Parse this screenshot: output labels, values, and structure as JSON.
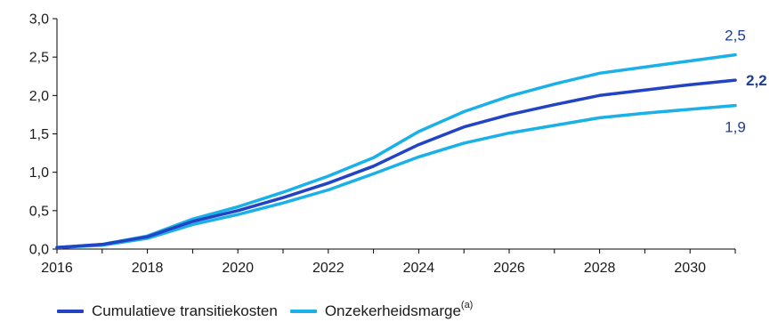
{
  "chart_data": {
    "type": "line",
    "x": [
      2016,
      2017,
      2018,
      2019,
      2020,
      2021,
      2022,
      2023,
      2024,
      2025,
      2026,
      2027,
      2028,
      2029,
      2030,
      2031
    ],
    "series": [
      {
        "name": "Cumulatieve transitiekosten",
        "color": "#2244c4",
        "width": 3.5,
        "values": [
          0.02,
          0.06,
          0.16,
          0.36,
          0.5,
          0.67,
          0.86,
          1.08,
          1.36,
          1.59,
          1.75,
          1.88,
          2.0,
          2.07,
          2.14,
          2.2
        ],
        "end_label": "2,2",
        "end_label_color": "#1f3c96",
        "end_label_bold": true
      },
      {
        "name": "Onzekerheidsmarge upper",
        "color": "#1ab0e8",
        "width": 3.5,
        "values": [
          0.02,
          0.06,
          0.17,
          0.39,
          0.55,
          0.74,
          0.95,
          1.19,
          1.53,
          1.79,
          1.99,
          2.15,
          2.29,
          2.37,
          2.45,
          2.53
        ],
        "end_label": "2,5",
        "end_label_color": "#1f3c96",
        "end_label_bold": false
      },
      {
        "name": "Onzekerheidsmarge lower",
        "color": "#1ab0e8",
        "width": 3.5,
        "values": [
          0.02,
          0.05,
          0.14,
          0.32,
          0.45,
          0.6,
          0.77,
          0.98,
          1.2,
          1.38,
          1.51,
          1.61,
          1.71,
          1.77,
          1.82,
          1.87
        ],
        "end_label": "1,9",
        "end_label_color": "#1f3c96",
        "end_label_bold": false
      }
    ],
    "xlim": [
      2016,
      2031
    ],
    "ylim": [
      0,
      3
    ],
    "x_ticks": [
      2016,
      2018,
      2020,
      2022,
      2024,
      2026,
      2028,
      2030
    ],
    "x_tick_labels": [
      "2016",
      "2018",
      "2020",
      "2022",
      "2024",
      "2026",
      "2028",
      "2030"
    ],
    "y_ticks": [
      0,
      0.5,
      1,
      1.5,
      2,
      2.5,
      3
    ],
    "y_tick_labels": [
      "0,0",
      "0,5",
      "1,0",
      "1,5",
      "2,0",
      "2,5",
      "3,0"
    ],
    "grid": false,
    "legend_position": "bottom-left"
  },
  "legend": {
    "items": [
      {
        "label": "Cumulatieve transitiekosten",
        "color": "#2244c4"
      },
      {
        "label": "Onzekerheidsmarge",
        "sup": "(a)",
        "color": "#1ab0e8"
      }
    ]
  }
}
